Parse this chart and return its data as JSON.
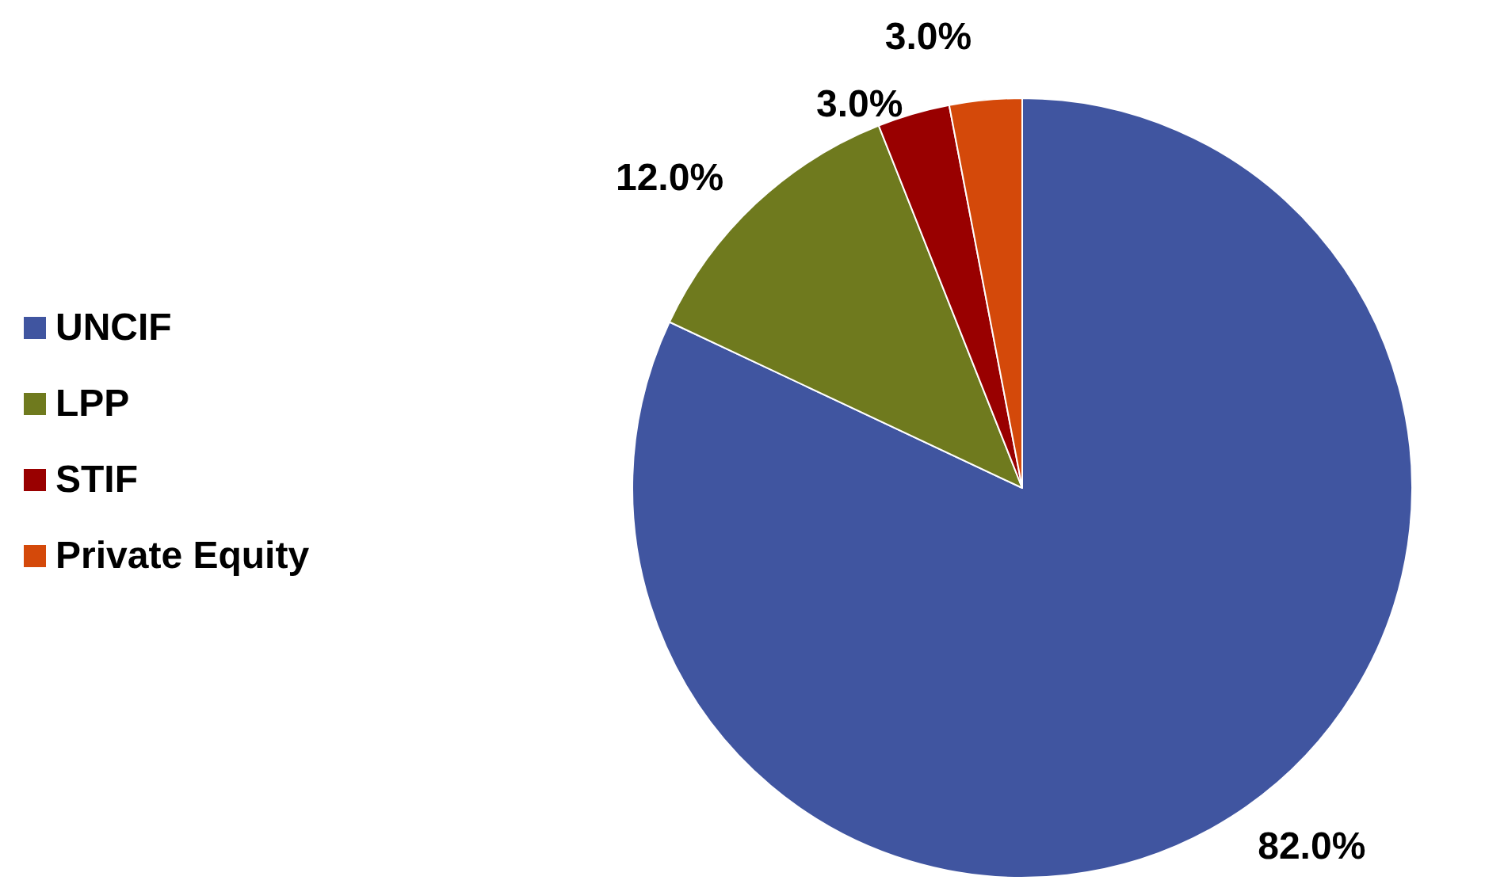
{
  "chart_data": {
    "type": "pie",
    "categories": [
      "UNCIF",
      "LPP",
      "STIF",
      "Private Equity"
    ],
    "values": [
      82,
      12,
      3,
      3
    ],
    "value_labels": [
      "82.0%",
      "12.0%",
      "3.0%",
      "3.0%"
    ],
    "colors": [
      "#4055a0",
      "#6f7a1e",
      "#990000",
      "#d4490a"
    ],
    "legend": "left"
  }
}
